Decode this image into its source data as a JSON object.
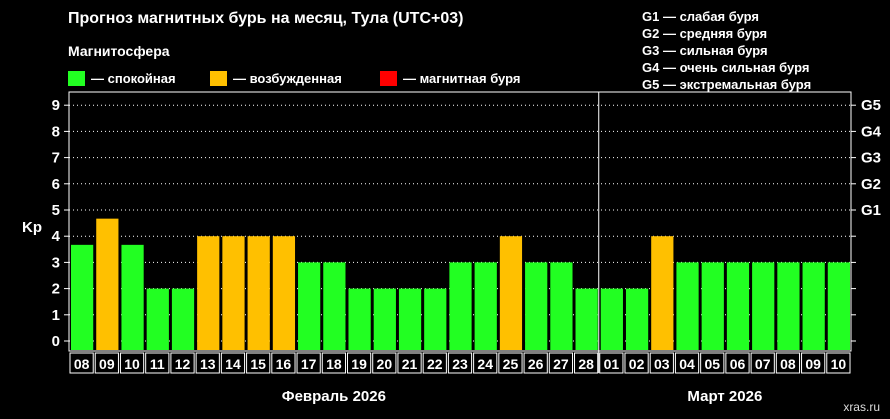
{
  "header": {
    "title": "Прогноз магнитных бурь на месяц, Тула (UTC+03)",
    "subtitle": "Магнитосфера"
  },
  "legend": [
    {
      "label": "— спокойная",
      "color": "#22ff22"
    },
    {
      "label": "— возбужденная",
      "color": "#ffc000"
    },
    {
      "label": "— магнитная буря",
      "color": "#ff0000"
    }
  ],
  "storm_levels": [
    "G1 — слабая буря",
    "G2 — средняя буря",
    "G3 — сильная буря",
    "G4 — очень сильная буря",
    "G5 — экстремальная буря"
  ],
  "credit": "xras.ru",
  "chart_data": {
    "type": "bar",
    "ylabel": "Kp",
    "ylim": [
      0,
      9
    ],
    "yticks": [
      0,
      1,
      2,
      3,
      4,
      5,
      6,
      7,
      8,
      9
    ],
    "right_axis": [
      {
        "value": 5,
        "label": "G1"
      },
      {
        "value": 6,
        "label": "G2"
      },
      {
        "value": 7,
        "label": "G3"
      },
      {
        "value": 8,
        "label": "G4"
      },
      {
        "value": 9,
        "label": "G5"
      }
    ],
    "grid": true,
    "categories": [
      "08",
      "09",
      "10",
      "11",
      "12",
      "13",
      "14",
      "15",
      "16",
      "17",
      "18",
      "19",
      "20",
      "21",
      "22",
      "23",
      "24",
      "25",
      "26",
      "27",
      "28",
      "01",
      "02",
      "03",
      "04",
      "05",
      "06",
      "07",
      "08",
      "09",
      "10"
    ],
    "values": [
      3.67,
      4.67,
      3.67,
      2,
      2,
      4,
      4,
      4,
      4,
      3,
      3,
      2,
      2,
      2,
      2,
      3,
      3,
      4,
      3,
      3,
      2,
      2,
      2,
      4,
      3,
      3,
      3,
      3,
      3,
      3,
      3
    ],
    "levels": [
      "спокойная",
      "возбужденная",
      "спокойная",
      "спокойная",
      "спокойная",
      "возбужденная",
      "возбужденная",
      "возбужденная",
      "возбужденная",
      "спокойная",
      "спокойная",
      "спокойная",
      "спокойная",
      "спокойная",
      "спокойная",
      "спокойная",
      "спокойная",
      "возбужденная",
      "спокойная",
      "спокойная",
      "спокойная",
      "спокойная",
      "спокойная",
      "возбужденная",
      "спокойная",
      "спокойная",
      "спокойная",
      "спокойная",
      "спокойная",
      "спокойная",
      "спокойная"
    ],
    "level_colors": {
      "спокойная": "#22ff22",
      "возбужденная": "#ffc000",
      "магнитная буря": "#ff0000"
    },
    "months": [
      {
        "label": "Февраль 2026",
        "from": 0,
        "to": 20
      },
      {
        "label": "Март 2026",
        "from": 21,
        "to": 30
      }
    ]
  }
}
